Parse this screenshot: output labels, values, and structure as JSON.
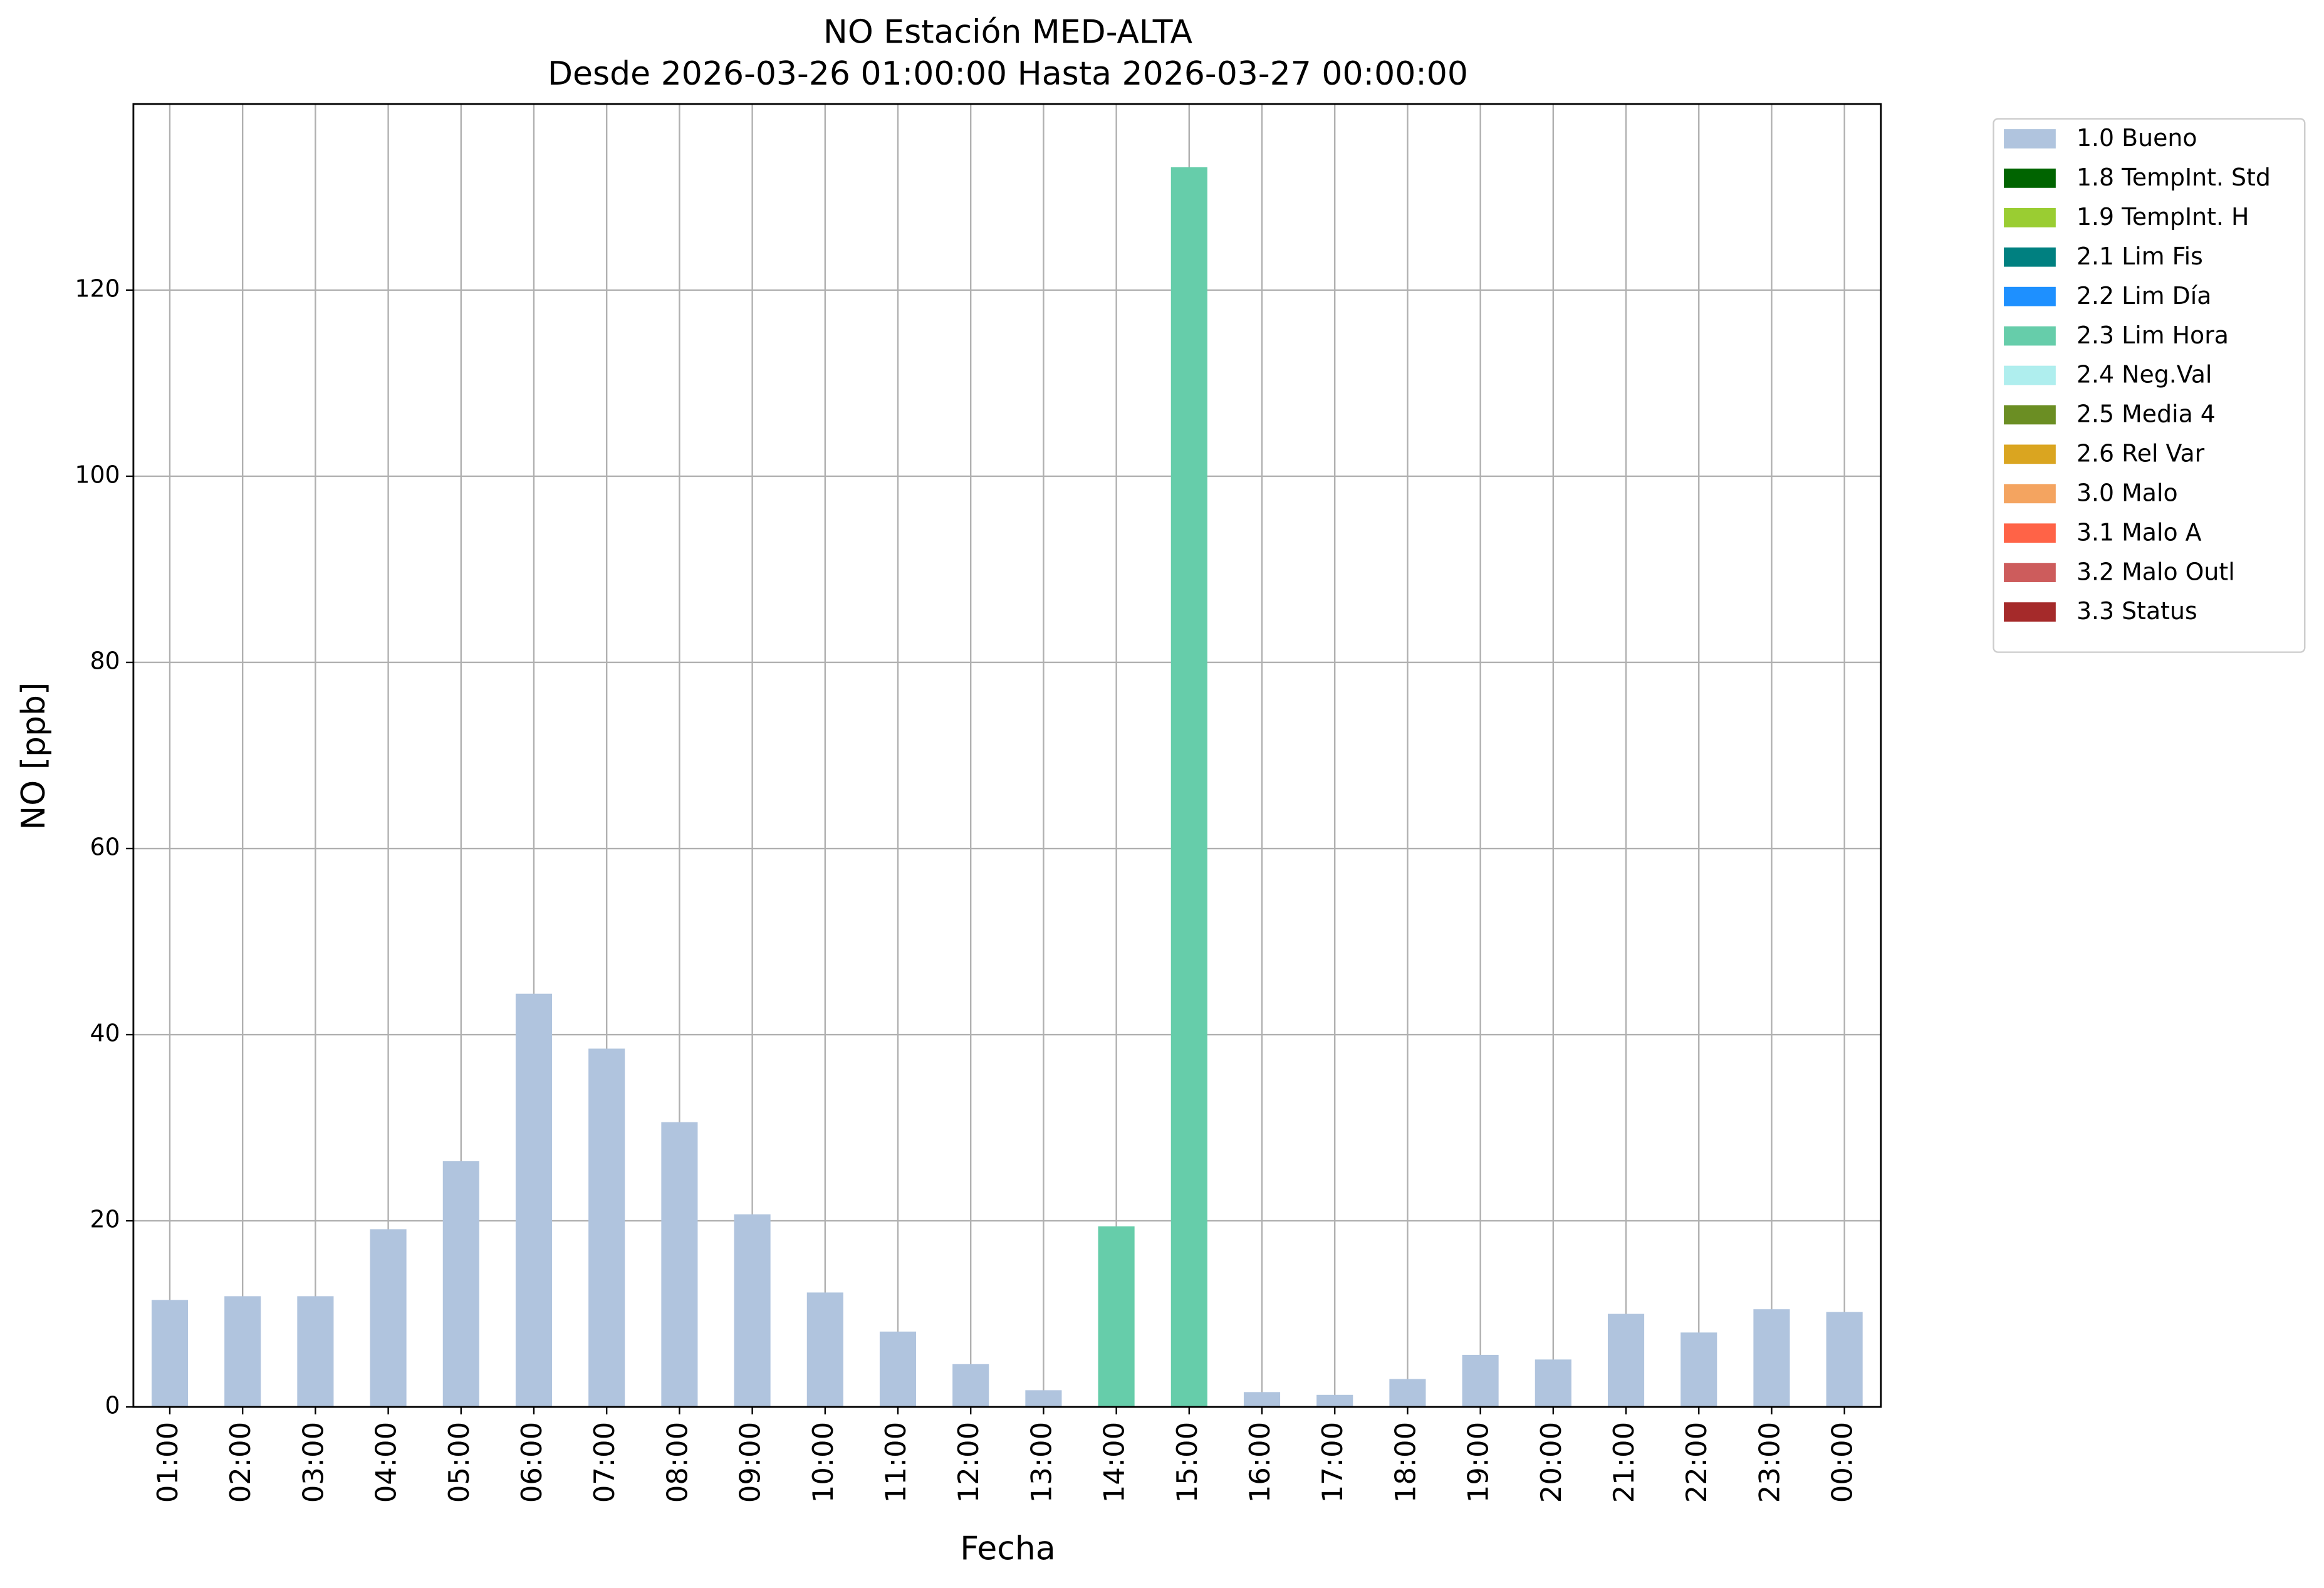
{
  "chart_data": {
    "type": "stacked_bar",
    "title": "NO Estación MED-ALTA",
    "subtitle": "Desde 2026-03-26 01:00:00 Hasta 2026-03-27 00:00:00",
    "x_label": "Fecha",
    "y_label": "NO [ppb]",
    "categories": [
      "01:00",
      "02:00",
      "03:00",
      "04:00",
      "05:00",
      "06:00",
      "07:00",
      "08:00",
      "09:00",
      "10:00",
      "11:00",
      "12:00",
      "13:00",
      "14:00",
      "15:00",
      "16:00",
      "17:00",
      "18:00",
      "19:00",
      "20:00",
      "21:00",
      "22:00",
      "23:00",
      "00:00"
    ],
    "series": [
      {
        "name": "1.0 Bueno",
        "color": "#b0c4de",
        "values": [
          11.5,
          11.9,
          11.9,
          19.1,
          26.4,
          44.4,
          38.5,
          30.6,
          20.7,
          12.3,
          8.1,
          4.6,
          1.8,
          null,
          null,
          1.6,
          1.3,
          3.0,
          5.6,
          5.1,
          10.0,
          8.0,
          10.5,
          10.2
        ]
      },
      {
        "name": "1.8 TempInt. Std",
        "color": "#006400",
        "values": [
          null,
          null,
          null,
          null,
          null,
          null,
          null,
          null,
          null,
          null,
          null,
          null,
          null,
          null,
          null,
          null,
          null,
          null,
          null,
          null,
          null,
          null,
          null,
          null
        ]
      },
      {
        "name": "1.9 TempInt. H",
        "color": "#9acd32",
        "values": [
          null,
          null,
          null,
          null,
          null,
          null,
          null,
          null,
          null,
          null,
          null,
          null,
          null,
          null,
          null,
          null,
          null,
          null,
          null,
          null,
          null,
          null,
          null,
          null
        ]
      },
      {
        "name": "2.1 Lim Fis",
        "color": "#008080",
        "values": [
          null,
          null,
          null,
          null,
          null,
          null,
          null,
          null,
          null,
          null,
          null,
          null,
          null,
          null,
          null,
          null,
          null,
          null,
          null,
          null,
          null,
          null,
          null,
          null
        ]
      },
      {
        "name": "2.2 Lim Día",
        "color": "#1e90ff",
        "values": [
          null,
          null,
          null,
          null,
          null,
          null,
          null,
          null,
          null,
          null,
          null,
          null,
          null,
          null,
          null,
          null,
          null,
          null,
          null,
          null,
          null,
          null,
          null,
          null
        ]
      },
      {
        "name": "2.3 Lim Hora",
        "color": "#66cdaa",
        "values": [
          null,
          null,
          null,
          null,
          null,
          null,
          null,
          null,
          null,
          null,
          null,
          null,
          null,
          19.4,
          133.2,
          null,
          null,
          null,
          null,
          null,
          null,
          null,
          null,
          null
        ]
      },
      {
        "name": "2.4 Neg.Val",
        "color": "#afeeee",
        "values": [
          null,
          null,
          null,
          null,
          null,
          null,
          null,
          null,
          null,
          null,
          null,
          null,
          null,
          null,
          null,
          null,
          null,
          null,
          null,
          null,
          null,
          null,
          null,
          null
        ]
      },
      {
        "name": "2.5 Media 4",
        "color": "#6b8e23",
        "values": [
          null,
          null,
          null,
          null,
          null,
          null,
          null,
          null,
          null,
          null,
          null,
          null,
          null,
          null,
          null,
          null,
          null,
          null,
          null,
          null,
          null,
          null,
          null,
          null
        ]
      },
      {
        "name": "2.6 Rel Var",
        "color": "#daa520",
        "values": [
          null,
          null,
          null,
          null,
          null,
          null,
          null,
          null,
          null,
          null,
          null,
          null,
          null,
          null,
          null,
          null,
          null,
          null,
          null,
          null,
          null,
          null,
          null,
          null
        ]
      },
      {
        "name": "3.0 Malo",
        "color": "#f4a460",
        "values": [
          null,
          null,
          null,
          null,
          null,
          null,
          null,
          null,
          null,
          null,
          null,
          null,
          null,
          null,
          null,
          null,
          null,
          null,
          null,
          null,
          null,
          null,
          null,
          null
        ]
      },
      {
        "name": "3.1 Malo A",
        "color": "#ff6347",
        "values": [
          null,
          null,
          null,
          null,
          null,
          null,
          null,
          null,
          null,
          null,
          null,
          null,
          null,
          null,
          null,
          null,
          null,
          null,
          null,
          null,
          null,
          null,
          null,
          null
        ]
      },
      {
        "name": "3.2 Malo Outl",
        "color": "#cd5c5c",
        "values": [
          null,
          null,
          null,
          null,
          null,
          null,
          null,
          null,
          null,
          null,
          null,
          null,
          null,
          null,
          null,
          null,
          null,
          null,
          null,
          null,
          null,
          null,
          null,
          null
        ]
      },
      {
        "name": "3.3 Status",
        "color": "#a52a2a",
        "values": [
          null,
          null,
          null,
          null,
          null,
          null,
          null,
          null,
          null,
          null,
          null,
          null,
          null,
          null,
          null,
          null,
          null,
          null,
          null,
          null,
          null,
          null,
          null,
          null
        ]
      }
    ],
    "ylim": [
      0,
      140
    ],
    "yticks": [
      0,
      20,
      40,
      60,
      80,
      100,
      120
    ],
    "grid": true,
    "legend": "outside upper right"
  }
}
